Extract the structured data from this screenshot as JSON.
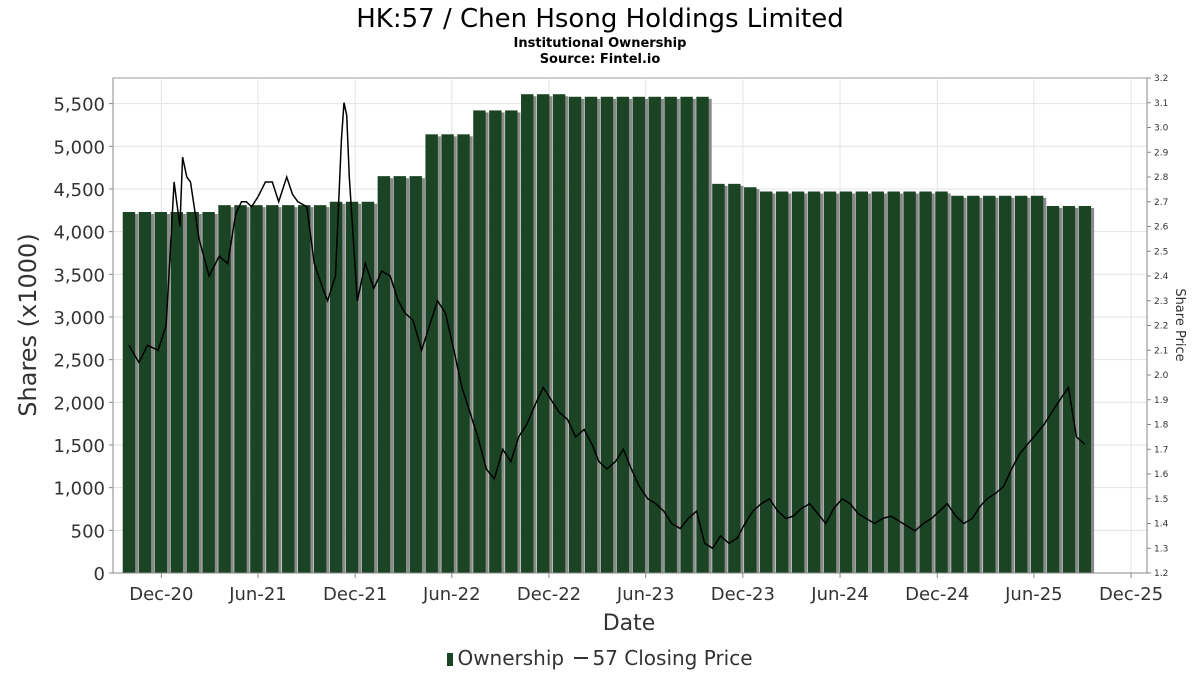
{
  "chart_data": {
    "type": "bar",
    "title": "HK:57 / Chen Hsong Holdings Limited",
    "subtitle": "Institutional Ownership",
    "source": "Source: Fintel.io",
    "xlabel": "Date",
    "ylabel": "Shares (x1000)",
    "y2label": "Share Price",
    "ylim": [
      0,
      5800
    ],
    "y2lim": [
      1.2,
      3.2
    ],
    "x_ticks": [
      "Dec-20",
      "Jun-21",
      "Dec-21",
      "Jun-22",
      "Dec-22",
      "Jun-23",
      "Dec-23",
      "Jun-24",
      "Dec-24",
      "Jun-25",
      "Dec-25"
    ],
    "y_ticks": [
      "0",
      "500",
      "1,000",
      "1,500",
      "2,000",
      "2,500",
      "3,000",
      "3,500",
      "4,000",
      "4,500",
      "5,000",
      "5,500"
    ],
    "y2_ticks": [
      "1.2",
      "1.3",
      "1.4",
      "1.5",
      "1.6",
      "1.7",
      "1.8",
      "1.9",
      "2.0",
      "2.1",
      "2.2",
      "2.3",
      "2.4",
      "2.5",
      "2.6",
      "2.7",
      "2.8",
      "2.9",
      "3.0",
      "3.1",
      "3.2"
    ],
    "grid": true,
    "legend_position": "bottom",
    "colors": {
      "bars": "#1b4424",
      "bar_shadow": "#8a8a8a",
      "price_line": "#000000"
    },
    "x_start": "2020-09-01",
    "x_end": "2025-12-31",
    "series": [
      {
        "name": "Ownership",
        "dates": [
          "2020-10-01",
          "2020-10-31",
          "2020-11-30",
          "2020-12-30",
          "2021-01-29",
          "2021-02-28",
          "2021-03-30",
          "2021-04-29",
          "2021-05-29",
          "2021-06-28",
          "2021-07-28",
          "2021-08-27",
          "2021-09-26",
          "2021-10-26",
          "2021-11-25",
          "2021-12-25",
          "2022-01-24",
          "2022-02-23",
          "2022-03-25",
          "2022-04-24",
          "2022-05-24",
          "2022-06-23",
          "2022-07-23",
          "2022-08-22",
          "2022-09-21",
          "2022-10-21",
          "2022-11-20",
          "2022-12-20",
          "2023-01-19",
          "2023-02-18",
          "2023-03-20",
          "2023-04-19",
          "2023-05-19",
          "2023-06-18",
          "2023-07-18",
          "2023-08-17",
          "2023-09-16",
          "2023-10-16",
          "2023-11-15",
          "2023-12-15",
          "2024-01-14",
          "2024-02-13",
          "2024-03-14",
          "2024-04-13",
          "2024-05-13",
          "2024-06-12",
          "2024-07-12",
          "2024-08-11",
          "2024-09-10",
          "2024-10-10",
          "2024-11-09",
          "2024-12-09",
          "2025-01-08",
          "2025-02-07",
          "2025-03-09",
          "2025-04-08",
          "2025-05-08",
          "2025-06-07",
          "2025-07-07",
          "2025-08-06",
          "2025-09-05"
        ],
        "values": [
          4230,
          4230,
          4230,
          4230,
          4230,
          4230,
          4310,
          4310,
          4310,
          4310,
          4310,
          4310,
          4310,
          4350,
          4350,
          4350,
          4650,
          4650,
          4650,
          5140,
          5140,
          5140,
          5420,
          5420,
          5420,
          5610,
          5610,
          5610,
          5580,
          5580,
          5580,
          5580,
          5580,
          5580,
          5580,
          5580,
          5580,
          4560,
          4560,
          4520,
          4470,
          4470,
          4470,
          4470,
          4470,
          4470,
          4470,
          4470,
          4470,
          4470,
          4470,
          4470,
          4420,
          4420,
          4420,
          4420,
          4420,
          4420,
          4300,
          4300,
          4300
        ]
      },
      {
        "name": "57 Closing Price",
        "dates": [
          "2020-10-01",
          "2020-10-20",
          "2020-11-05",
          "2020-11-25",
          "2020-12-10",
          "2020-12-25",
          "2021-01-05",
          "2021-01-10",
          "2021-01-18",
          "2021-01-25",
          "2021-02-10",
          "2021-03-01",
          "2021-03-20",
          "2021-04-05",
          "2021-04-20",
          "2021-05-01",
          "2021-05-10",
          "2021-05-20",
          "2021-06-01",
          "2021-06-15",
          "2021-06-28",
          "2021-07-10",
          "2021-07-25",
          "2021-08-05",
          "2021-08-15",
          "2021-09-01",
          "2021-09-15",
          "2021-10-01",
          "2021-10-10",
          "2021-10-25",
          "2021-11-05",
          "2021-11-10",
          "2021-11-15",
          "2021-11-20",
          "2021-12-05",
          "2021-12-20",
          "2022-01-05",
          "2022-01-20",
          "2022-02-05",
          "2022-02-20",
          "2022-03-05",
          "2022-03-20",
          "2022-04-05",
          "2022-04-20",
          "2022-05-05",
          "2022-05-20",
          "2022-06-05",
          "2022-06-20",
          "2022-07-05",
          "2022-07-20",
          "2022-08-05",
          "2022-08-20",
          "2022-09-05",
          "2022-09-20",
          "2022-10-05",
          "2022-10-20",
          "2022-11-05",
          "2022-11-20",
          "2022-12-05",
          "2022-12-20",
          "2023-01-05",
          "2023-01-20",
          "2023-02-05",
          "2023-02-20",
          "2023-03-05",
          "2023-03-20",
          "2023-04-05",
          "2023-04-20",
          "2023-05-05",
          "2023-05-20",
          "2023-06-05",
          "2023-06-20",
          "2023-07-05",
          "2023-07-20",
          "2023-08-05",
          "2023-08-20",
          "2023-09-05",
          "2023-09-20",
          "2023-10-05",
          "2023-10-20",
          "2023-11-05",
          "2023-11-20",
          "2023-12-05",
          "2023-12-20",
          "2024-01-05",
          "2024-01-20",
          "2024-02-05",
          "2024-02-20",
          "2024-03-05",
          "2024-03-20",
          "2024-04-05",
          "2024-04-20",
          "2024-05-05",
          "2024-05-20",
          "2024-06-05",
          "2024-06-20",
          "2024-07-05",
          "2024-07-20",
          "2024-08-05",
          "2024-08-20",
          "2024-09-05",
          "2024-09-20",
          "2024-10-05",
          "2024-10-20",
          "2024-11-05",
          "2024-11-20",
          "2024-12-05",
          "2024-12-20",
          "2025-01-05",
          "2025-01-20",
          "2025-02-05",
          "2025-02-20",
          "2025-03-05",
          "2025-03-20",
          "2025-04-05",
          "2025-04-20",
          "2025-05-05",
          "2025-05-20",
          "2025-06-05",
          "2025-06-20",
          "2025-07-05",
          "2025-07-20",
          "2025-08-05",
          "2025-08-20",
          "2025-09-05"
        ],
        "values": [
          2.12,
          2.05,
          2.12,
          2.1,
          2.2,
          2.78,
          2.6,
          2.88,
          2.8,
          2.78,
          2.55,
          2.4,
          2.48,
          2.45,
          2.65,
          2.7,
          2.7,
          2.68,
          2.72,
          2.78,
          2.78,
          2.7,
          2.8,
          2.73,
          2.7,
          2.68,
          2.45,
          2.35,
          2.3,
          2.4,
          2.95,
          3.1,
          3.05,
          2.8,
          2.3,
          2.45,
          2.35,
          2.42,
          2.4,
          2.3,
          2.25,
          2.22,
          2.1,
          2.2,
          2.3,
          2.25,
          2.1,
          1.95,
          1.85,
          1.75,
          1.62,
          1.58,
          1.7,
          1.65,
          1.75,
          1.8,
          1.88,
          1.95,
          1.9,
          1.85,
          1.82,
          1.75,
          1.78,
          1.72,
          1.65,
          1.62,
          1.65,
          1.7,
          1.62,
          1.55,
          1.5,
          1.48,
          1.45,
          1.4,
          1.38,
          1.42,
          1.45,
          1.32,
          1.3,
          1.35,
          1.32,
          1.34,
          1.4,
          1.45,
          1.48,
          1.5,
          1.45,
          1.42,
          1.43,
          1.46,
          1.48,
          1.44,
          1.4,
          1.46,
          1.5,
          1.48,
          1.44,
          1.42,
          1.4,
          1.42,
          1.43,
          1.41,
          1.39,
          1.37,
          1.4,
          1.42,
          1.45,
          1.48,
          1.43,
          1.4,
          1.42,
          1.47,
          1.5,
          1.52,
          1.55,
          1.62,
          1.68,
          1.72,
          1.76,
          1.8,
          1.85,
          1.9,
          1.95,
          1.75,
          1.72
        ]
      }
    ]
  }
}
